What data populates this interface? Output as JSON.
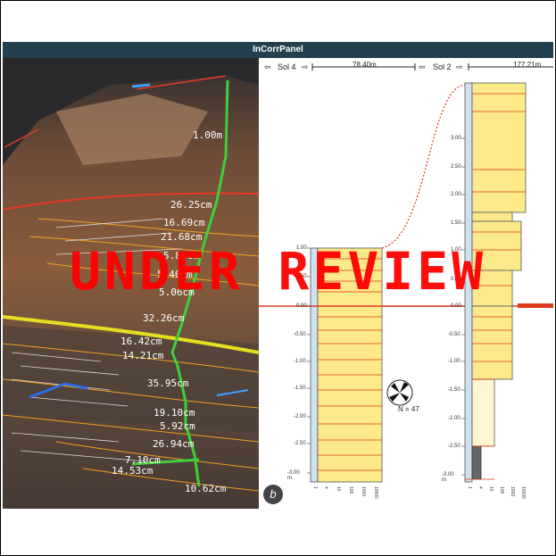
{
  "window": {
    "title": "InCorrPanel"
  },
  "section_a": {
    "thickness_labels": [
      "1.00m",
      "26.25cm",
      "16.69cm",
      "21.68cm",
      "5.86cm",
      "5.40cm",
      "5.06cm",
      "32.26cm",
      "16.42cm",
      "14.21cm",
      "35.95cm",
      "19.10cm",
      "5.92cm",
      "26.94cm",
      "7.10cm",
      "14.53cm",
      "10.62cm"
    ]
  },
  "section_b": {
    "nav": {
      "prev_icon": "arrow-left-icon",
      "next_icon": "arrow-right-icon",
      "sol_a": "Sol 4",
      "sol_b": "Sol 2"
    },
    "distances": [
      "78.40m",
      "177.21m"
    ],
    "log1_ticks": [
      "1.00",
      "0.50",
      "0.00",
      "-0.50",
      "-1.00",
      "-1.50",
      "-2.00",
      "-2.50",
      "-3.00 m"
    ],
    "log2_ticks": [
      "3.00",
      "2.50",
      "2.00",
      "1.50",
      "1.00",
      "0.50",
      "0.00",
      "-0.50",
      "-1.00",
      "-1.50",
      "-2.00",
      "-2.50",
      "-3.00 m"
    ],
    "grain_ticks": [
      "1",
      "4",
      "10",
      "100",
      "1000",
      "10000"
    ],
    "compass_label": "N = 47",
    "panel_badge": "b"
  },
  "overlay": {
    "stamp": "UNDER REVIEW"
  },
  "colors": {
    "titlebar": "#24404f",
    "layer_fill": "#fbe98a",
    "layer_line": "#e03a1e",
    "stamp": "#ff0000"
  }
}
